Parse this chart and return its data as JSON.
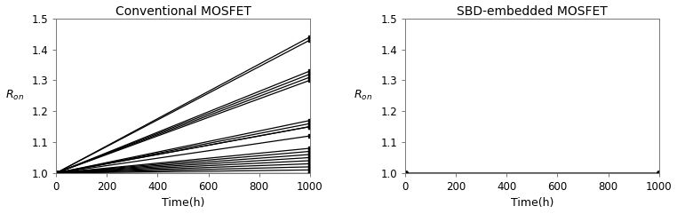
{
  "title_left": "Conventional MOSFET",
  "title_right": "SBD-embedded MOSFET",
  "xlabel": "Time(h)",
  "ylabel": "$R_{on}$",
  "xlim": [
    0,
    1000
  ],
  "ylim": [
    1.0,
    1.5
  ],
  "yticks": [
    1.0,
    1.1,
    1.2,
    1.3,
    1.4,
    1.5
  ],
  "xticks": [
    0,
    200,
    400,
    600,
    800,
    1000
  ],
  "conv_lines": [
    {
      "x": [
        0,
        1000
      ],
      "y": [
        1.0,
        1.0
      ]
    },
    {
      "x": [
        0,
        1000
      ],
      "y": [
        1.0,
        1.0
      ]
    },
    {
      "x": [
        0,
        1000
      ],
      "y": [
        1.0,
        1.01
      ]
    },
    {
      "x": [
        0,
        1000
      ],
      "y": [
        1.0,
        1.02
      ]
    },
    {
      "x": [
        0,
        1000
      ],
      "y": [
        1.0,
        1.03
      ]
    },
    {
      "x": [
        0,
        1000
      ],
      "y": [
        1.0,
        1.04
      ]
    },
    {
      "x": [
        0,
        1000
      ],
      "y": [
        1.0,
        1.05
      ]
    },
    {
      "x": [
        0,
        1000
      ],
      "y": [
        1.0,
        1.06
      ]
    },
    {
      "x": [
        0,
        1000
      ],
      "y": [
        1.0,
        1.07
      ]
    },
    {
      "x": [
        0,
        1000
      ],
      "y": [
        1.0,
        1.08
      ]
    },
    {
      "x": [
        0,
        1000
      ],
      "y": [
        1.0,
        1.12
      ]
    },
    {
      "x": [
        0,
        1000
      ],
      "y": [
        1.0,
        1.15
      ]
    },
    {
      "x": [
        0,
        1000
      ],
      "y": [
        1.0,
        1.16
      ]
    },
    {
      "x": [
        0,
        1000
      ],
      "y": [
        1.0,
        1.17
      ]
    },
    {
      "x": [
        0,
        1000
      ],
      "y": [
        1.0,
        1.15
      ]
    },
    {
      "x": [
        0,
        1000
      ],
      "y": [
        1.0,
        1.3
      ]
    },
    {
      "x": [
        0,
        1000
      ],
      "y": [
        1.0,
        1.31
      ]
    },
    {
      "x": [
        0,
        1000
      ],
      "y": [
        1.0,
        1.32
      ]
    },
    {
      "x": [
        0,
        1000
      ],
      "y": [
        1.0,
        1.33
      ]
    },
    {
      "x": [
        0,
        1000
      ],
      "y": [
        1.0,
        1.43
      ]
    },
    {
      "x": [
        0,
        1000
      ],
      "y": [
        1.0,
        1.44
      ]
    }
  ],
  "sbd_lines": [
    {
      "x": [
        0,
        1000
      ],
      "y": [
        1.0,
        1.0
      ]
    },
    {
      "x": [
        0,
        1000
      ],
      "y": [
        1.0,
        1.0
      ]
    },
    {
      "x": [
        0,
        1000
      ],
      "y": [
        1.0,
        1.0
      ]
    },
    {
      "x": [
        0,
        1000
      ],
      "y": [
        1.0,
        1.0
      ]
    },
    {
      "x": [
        0,
        1000
      ],
      "y": [
        1.0,
        1.0
      ]
    },
    {
      "x": [
        0,
        1000
      ],
      "y": [
        1.0,
        1.0
      ]
    },
    {
      "x": [
        0,
        1000
      ],
      "y": [
        1.0,
        1.0
      ]
    },
    {
      "x": [
        0,
        1000
      ],
      "y": [
        1.0,
        1.0
      ]
    }
  ],
  "line_color": "#000000",
  "bg_color": "#ffffff",
  "marker": "s",
  "markersize": 2.5,
  "linewidth": 0.9,
  "title_fontsize": 10,
  "label_fontsize": 9,
  "tick_fontsize": 8.5
}
